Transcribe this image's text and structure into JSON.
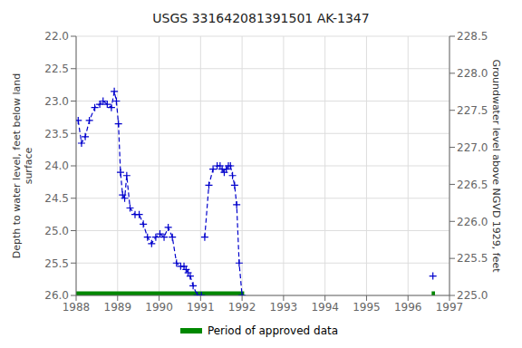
{
  "chart_data": {
    "type": "line",
    "title": "USGS 331642081391501 AK-1347",
    "y_label": "Depth to water level, feet below land\nsurface",
    "y2_label": "Groundwater level above NGVD 1929, feet",
    "xlim": [
      1988.0,
      1997.0
    ],
    "xticks": [
      1988,
      1989,
      1990,
      1991,
      1992,
      1993,
      1994,
      1995,
      1996,
      1997
    ],
    "ylim": [
      26.0,
      22.0
    ],
    "yticks": [
      {
        "value": 22.0,
        "label": "22.0"
      },
      {
        "value": 22.5,
        "label": "22.5"
      },
      {
        "value": 23.0,
        "label": "23.0"
      },
      {
        "value": 23.5,
        "label": "23.5"
      },
      {
        "value": 24.0,
        "label": "24.0"
      },
      {
        "value": 24.5,
        "label": "24.5"
      },
      {
        "value": 25.0,
        "label": "25.0"
      },
      {
        "value": 25.5,
        "label": "25.5"
      },
      {
        "value": 26.0,
        "label": "26.0"
      }
    ],
    "y2lim": [
      225.0,
      228.5
    ],
    "y2ticks": [
      {
        "value": 225.0,
        "label": "225.0"
      },
      {
        "value": 225.5,
        "label": "225.5"
      },
      {
        "value": 226.0,
        "label": "226.0"
      },
      {
        "value": 226.5,
        "label": "226.5"
      },
      {
        "value": 227.0,
        "label": "227.0"
      },
      {
        "value": 227.5,
        "label": "227.5"
      },
      {
        "value": 228.0,
        "label": "228.0"
      },
      {
        "value": 228.5,
        "label": "228.5"
      }
    ],
    "grid": true,
    "legend": "bottom",
    "series": [
      {
        "type": "line",
        "color": "#0000CC",
        "line_style": "dashed",
        "marker": "plus",
        "x": [
          1988.05,
          1988.13,
          1988.22,
          1988.32,
          1988.45,
          1988.57,
          1988.65,
          1988.75,
          1988.85,
          1988.92,
          1988.97,
          1989.02,
          1989.07,
          1989.12,
          1989.17,
          1989.22,
          1989.3,
          1989.42,
          1989.52,
          1989.62,
          1989.72,
          1989.82,
          1989.92,
          1990.02,
          1990.12,
          1990.22,
          1990.32,
          1990.42,
          1990.52,
          1990.6,
          1990.65,
          1990.7,
          1990.75,
          1990.82,
          1990.92,
          1991.02
        ],
        "values": [
          23.3,
          23.65,
          23.55,
          23.3,
          23.1,
          23.05,
          23.0,
          23.05,
          23.1,
          22.85,
          23.0,
          23.35,
          24.1,
          24.45,
          24.5,
          24.15,
          24.65,
          24.75,
          24.75,
          24.9,
          25.1,
          25.2,
          25.1,
          25.05,
          25.1,
          24.95,
          25.1,
          25.5,
          25.55,
          25.55,
          25.6,
          25.65,
          25.7,
          25.85,
          26.0,
          26.0
        ]
      },
      {
        "type": "line",
        "color": "#0000CC",
        "line_style": "dashed",
        "marker": "plus",
        "x": [
          1991.1,
          1991.2,
          1991.3,
          1991.4,
          1991.47,
          1991.52,
          1991.57,
          1991.62,
          1991.67,
          1991.72,
          1991.77,
          1991.82,
          1991.87,
          1991.93,
          1992.0
        ],
        "values": [
          25.1,
          24.3,
          24.05,
          24.0,
          24.0,
          24.05,
          24.1,
          24.05,
          24.0,
          24.0,
          24.15,
          24.3,
          24.6,
          25.5,
          26.0
        ]
      },
      {
        "type": "line",
        "color": "#0000CC",
        "line_style": "none",
        "marker": "plus",
        "x": [
          1996.6
        ],
        "values": [
          25.7
        ]
      },
      {
        "type": "bar",
        "name": "Period of approved data",
        "color": "#008800",
        "orientation": "horizontal",
        "y": 26.0,
        "ranges": [
          [
            1988.0,
            1992.05
          ],
          [
            1996.57,
            1996.65
          ]
        ]
      }
    ]
  }
}
